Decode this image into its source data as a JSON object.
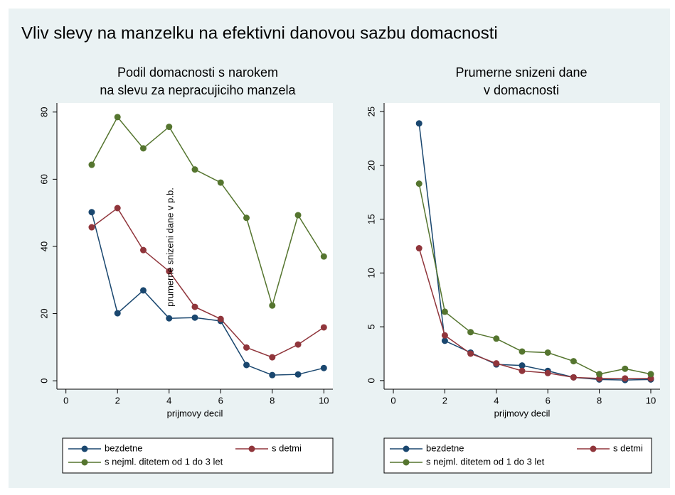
{
  "title": "Vliv slevy na manzelku na efektivni danovou sazbu domacnosti",
  "chart_data": [
    {
      "type": "line",
      "title": [
        "Podil domacnosti s narokem",
        "na slevu za nepracujiciho manzela"
      ],
      "x_label": "prijmovy decil",
      "x": [
        1,
        2,
        3,
        4,
        5,
        6,
        7,
        8,
        9,
        10
      ],
      "xlim": [
        -0.35,
        10.35
      ],
      "xticks": [
        0,
        2,
        4,
        6,
        8,
        10
      ],
      "ylim": [
        -2.5,
        82.7
      ],
      "yticks": [
        0,
        20,
        40,
        60,
        80
      ],
      "series": [
        {
          "name": "bezdetne",
          "color": "#1a476f",
          "values": [
            50.2,
            20.1,
            26.9,
            18.6,
            18.8,
            17.8,
            4.7,
            1.7,
            1.9,
            3.8
          ]
        },
        {
          "name": "s detmi",
          "color": "#90353b",
          "values": [
            45.7,
            51.4,
            38.9,
            32.6,
            22.0,
            18.4,
            9.9,
            7.0,
            10.8,
            15.9
          ]
        },
        {
          "name": "s nejml. ditetem od 1 do 3 let",
          "color": "#55752f",
          "values": [
            64.3,
            78.5,
            69.2,
            75.6,
            62.9,
            59.0,
            48.5,
            22.4,
            49.3,
            37.0
          ]
        }
      ]
    },
    {
      "type": "line",
      "title": [
        "Prumerne snizeni dane",
        "v domacnosti"
      ],
      "x_label": "prijmovy decil",
      "y_label": "prumerne snizeni dane v p.b.",
      "x": [
        1,
        2,
        3,
        4,
        5,
        6,
        7,
        8,
        9,
        10
      ],
      "xlim": [
        -0.36,
        10.36
      ],
      "xticks": [
        0,
        2,
        4,
        6,
        8,
        10
      ],
      "ylim": [
        -0.8,
        25.8
      ],
      "yticks": [
        0,
        5,
        10,
        15,
        20,
        25
      ],
      "series": [
        {
          "name": "bezdetne",
          "color": "#1a476f",
          "values": [
            23.9,
            3.7,
            2.6,
            1.5,
            1.4,
            0.9,
            0.3,
            0.1,
            0.05,
            0.1
          ]
        },
        {
          "name": "s detmi",
          "color": "#90353b",
          "values": [
            12.3,
            4.2,
            2.5,
            1.6,
            0.9,
            0.7,
            0.3,
            0.2,
            0.2,
            0.2
          ]
        },
        {
          "name": "s nejml. ditetem od 1 do 3 let",
          "color": "#55752f",
          "values": [
            18.3,
            6.4,
            4.5,
            3.9,
            2.7,
            2.6,
            1.8,
            0.6,
            1.1,
            0.6
          ]
        }
      ]
    }
  ]
}
